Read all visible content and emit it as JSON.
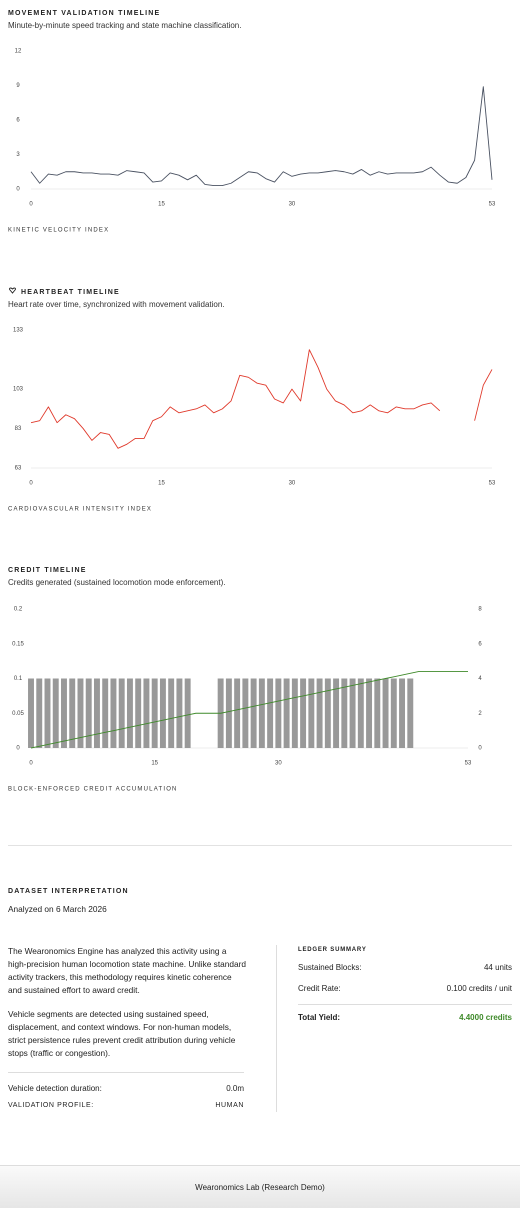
{
  "chart_data": [
    {
      "type": "line",
      "title": "MOVEMENT VALIDATION TIMELINE",
      "subtitle": "Minute-by-minute speed tracking and state machine classification.",
      "x_label": "KINETIC VELOCITY INDEX",
      "x": [
        0,
        1,
        2,
        3,
        4,
        5,
        6,
        7,
        8,
        9,
        10,
        11,
        12,
        13,
        14,
        15,
        16,
        17,
        18,
        19,
        20,
        21,
        22,
        23,
        24,
        25,
        26,
        27,
        28,
        29,
        30,
        31,
        32,
        33,
        34,
        35,
        36,
        37,
        38,
        39,
        40,
        41,
        42,
        43,
        44,
        45,
        46,
        47,
        48,
        49,
        50,
        51,
        52,
        53
      ],
      "series": [
        {
          "color": "#4a5262",
          "values": [
            1.5,
            0.5,
            1.3,
            1.2,
            1.5,
            1.5,
            1.4,
            1.4,
            1.3,
            1.3,
            1.2,
            1.6,
            1.5,
            1.4,
            0.6,
            0.7,
            1.4,
            1.2,
            0.8,
            1.2,
            0.4,
            0.3,
            0.3,
            0.5,
            1.0,
            1.5,
            1.4,
            0.9,
            0.6,
            1.5,
            1.1,
            1.3,
            1.4,
            1.4,
            1.5,
            1.6,
            1.5,
            1.3,
            1.7,
            1.2,
            1.5,
            1.3,
            1.4,
            1.4,
            1.4,
            1.5,
            1.9,
            1.2,
            0.6,
            0.5,
            1.0,
            2.5,
            8.9,
            0.8
          ]
        }
      ],
      "xlim": [
        0,
        53
      ],
      "xticks": [
        0,
        15,
        30,
        53
      ],
      "ylim": [
        0,
        12
      ],
      "yticks": [
        0,
        3,
        6,
        9,
        12
      ]
    },
    {
      "type": "line",
      "title": "HEARTBEAT TIMELINE",
      "subtitle": "Heart rate over time, synchronized with movement validation.",
      "x_label": "CARDIOVASCULAR INTENSITY INDEX",
      "x": [
        0,
        1,
        2,
        3,
        4,
        5,
        6,
        7,
        8,
        9,
        10,
        11,
        12,
        13,
        14,
        15,
        16,
        17,
        18,
        19,
        20,
        21,
        22,
        23,
        24,
        25,
        26,
        27,
        28,
        29,
        30,
        31,
        32,
        33,
        34,
        35,
        36,
        37,
        38,
        39,
        40,
        41,
        42,
        43,
        44,
        45,
        46,
        47,
        48,
        49,
        50,
        51,
        52,
        53
      ],
      "series": [
        {
          "color": "#e0392b",
          "values": [
            86,
            87,
            94,
            86,
            90,
            88,
            83,
            77,
            81,
            80,
            73,
            75,
            78,
            78,
            87,
            89,
            94,
            91,
            92,
            93,
            95,
            91,
            93,
            97,
            110,
            109,
            106,
            105,
            98,
            96,
            103,
            97,
            123,
            114,
            103,
            97,
            95,
            91,
            92,
            95,
            92,
            91,
            94,
            93,
            93,
            95,
            96,
            92,
            null,
            null,
            null,
            87,
            105,
            113
          ]
        }
      ],
      "xlim": [
        0,
        53
      ],
      "xticks": [
        0,
        15,
        30,
        53
      ],
      "ylim": [
        63,
        133
      ],
      "yticks": [
        63,
        83,
        103,
        133
      ]
    },
    {
      "type": "bar",
      "title": "CREDIT TIMELINE",
      "subtitle": "Credits generated (sustained locomotion mode enforcement).",
      "x_label": "BLOCK-ENFORCED CREDIT ACCUMULATION",
      "x": [
        0,
        1,
        2,
        3,
        4,
        5,
        6,
        7,
        8,
        9,
        10,
        11,
        12,
        13,
        14,
        15,
        16,
        17,
        18,
        19,
        20,
        21,
        22,
        23,
        24,
        25,
        26,
        27,
        28,
        29,
        30,
        31,
        32,
        33,
        34,
        35,
        36,
        37,
        38,
        39,
        40,
        41,
        42,
        43,
        44,
        45,
        46,
        47,
        48,
        49,
        50,
        51,
        52,
        53
      ],
      "series": [
        {
          "type": "bar",
          "color": "#999999",
          "values": [
            0.1,
            0.1,
            0.1,
            0.1,
            0.1,
            0.1,
            0.1,
            0.1,
            0.1,
            0.1,
            0.1,
            0.1,
            0.1,
            0.1,
            0.1,
            0.1,
            0.1,
            0.1,
            0.1,
            0.1,
            0,
            0,
            0,
            0.1,
            0.1,
            0.1,
            0.1,
            0.1,
            0.1,
            0.1,
            0.1,
            0.1,
            0.1,
            0.1,
            0.1,
            0.1,
            0.1,
            0.1,
            0.1,
            0.1,
            0.1,
            0.1,
            0.1,
            0.1,
            0.1,
            0.1,
            0.1,
            0,
            0,
            0,
            0,
            0,
            0,
            0
          ]
        },
        {
          "type": "line",
          "axis": "y2",
          "color": "#3f8a2a",
          "values": [
            0,
            0.1,
            0.2,
            0.3,
            0.4,
            0.5,
            0.6,
            0.7,
            0.8,
            0.9,
            1,
            1.1,
            1.2,
            1.3,
            1.4,
            1.5,
            1.6,
            1.7,
            1.8,
            1.9,
            2,
            2,
            2,
            2,
            2.1,
            2.2,
            2.3,
            2.4,
            2.5,
            2.6,
            2.7,
            2.8,
            2.9,
            3,
            3.1,
            3.2,
            3.3,
            3.4,
            3.5,
            3.6,
            3.7,
            3.8,
            3.9,
            4,
            4.1,
            4.2,
            4.3,
            4.4,
            4.4,
            4.4,
            4.4,
            4.4,
            4.4,
            4.4
          ]
        }
      ],
      "xlim": [
        0,
        53
      ],
      "xticks": [
        0,
        15,
        30,
        53
      ],
      "ylim": [
        0,
        0.2
      ],
      "yticks": [
        0,
        0.05,
        0.1,
        0.15,
        0.2
      ],
      "y2lim": [
        0,
        8
      ],
      "y2ticks": [
        0,
        2,
        4,
        6,
        8
      ]
    }
  ],
  "interpretation": {
    "title": "DATASET INTERPRETATION",
    "date": "Analyzed on 6 March 2026",
    "paragraphs": [
      "The Wearonomics Engine has analyzed this activity using a high-precision human locomotion state machine. Unlike standard activity trackers, this methodology requires kinetic coherence and sustained effort to award credit.",
      "Vehicle segments are detected using sustained speed, displacement, and context windows. For non-human models, strict persistence rules prevent credit attribution during vehicle stops (traffic or congestion)."
    ],
    "details": [
      {
        "label": "Vehicle detection duration:",
        "value": "0.0m"
      },
      {
        "label": "VALIDATION PROFILE:",
        "value": "HUMAN"
      }
    ]
  },
  "ledger": {
    "title": "LEDGER SUMMARY",
    "rows": [
      {
        "label": "Sustained Blocks:",
        "value": "44 units"
      },
      {
        "label": "Credit Rate:",
        "value": "0.100 credits / unit"
      },
      {
        "label": "Total Yield:",
        "value": "4.4000 credits"
      }
    ]
  },
  "footer": "Wearonomics Lab (Research Demo)"
}
